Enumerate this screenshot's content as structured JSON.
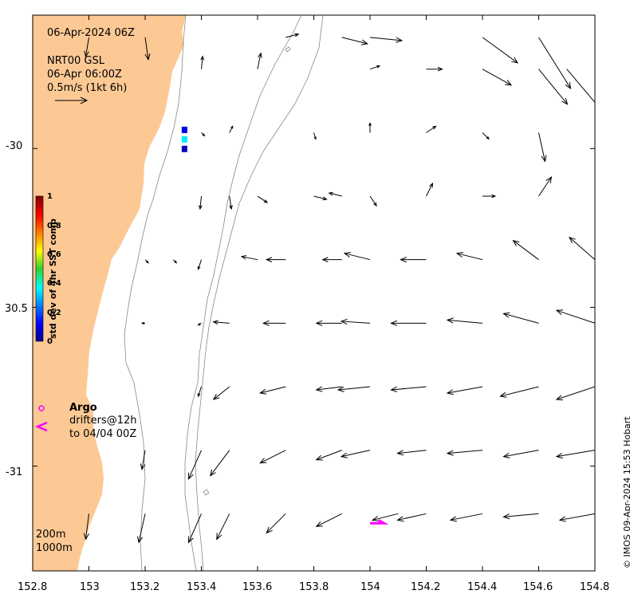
{
  "header": {
    "date": "06-Apr-2024 06Z",
    "product": "NRT00 GSL",
    "product_time": "06-Apr 06:00Z",
    "scale_label": "0.5m/s (1kt 6h)"
  },
  "axes": {
    "x_ticks": [
      "152.8",
      "153",
      "153.2",
      "153.4",
      "153.6",
      "153.8",
      "154",
      "154.2",
      "154.4",
      "154.6",
      "154.8"
    ],
    "y_ticks": [
      "-30",
      "30.5",
      "-31"
    ]
  },
  "colorbar": {
    "title": "std dev of 4hr SST comp",
    "ticks": [
      "1",
      "0.8",
      "0.6",
      "0.4",
      "0.2",
      "0"
    ]
  },
  "legend": {
    "argo_label": "Argo",
    "drifters_line1": "drifters@12h",
    "drifters_line2": "to 04/04 00Z",
    "isobath_200": "200m",
    "isobath_1000": "1000m"
  },
  "credit": "© IMOS 09-Apr-2024 15:53 Hobart",
  "colors": {
    "land": "#fcc995",
    "argo": "#ff00ff",
    "drifter": "#ff00ff",
    "isobath": "#888888",
    "arrows": "#000000"
  },
  "map_extent": {
    "lon": [
      152.8,
      154.8
    ],
    "lat": [
      -31.33,
      -29.58
    ]
  },
  "current_field": {
    "units": "m/s",
    "vectors": [
      [
        153.0,
        -29.65,
        -0.05,
        -0.3
      ],
      [
        153.2,
        -29.65,
        0.05,
        -0.35
      ],
      [
        153.7,
        -29.65,
        0.2,
        0.05
      ],
      [
        153.9,
        -29.65,
        0.4,
        -0.1
      ],
      [
        154.0,
        -29.65,
        0.5,
        -0.05
      ],
      [
        154.4,
        -29.65,
        0.55,
        -0.4
      ],
      [
        154.6,
        -29.65,
        0.5,
        -0.8
      ],
      [
        153.4,
        -29.75,
        0.02,
        0.2
      ],
      [
        153.6,
        -29.75,
        0.05,
        0.25
      ],
      [
        154.0,
        -29.75,
        0.15,
        0.05
      ],
      [
        154.2,
        -29.75,
        0.25,
        0.0
      ],
      [
        154.4,
        -29.75,
        0.45,
        -0.25
      ],
      [
        154.6,
        -29.75,
        0.45,
        -0.55
      ],
      [
        154.7,
        -29.75,
        0.55,
        -0.65
      ],
      [
        153.4,
        -29.95,
        0.05,
        -0.05
      ],
      [
        153.5,
        -29.95,
        0.05,
        0.1
      ],
      [
        153.8,
        -29.95,
        0.03,
        -0.1
      ],
      [
        154.0,
        -29.95,
        0.0,
        0.15
      ],
      [
        154.2,
        -29.95,
        0.15,
        0.1
      ],
      [
        154.4,
        -29.95,
        0.1,
        -0.1
      ],
      [
        154.6,
        -29.95,
        0.1,
        -0.45
      ],
      [
        153.4,
        -30.15,
        -0.02,
        -0.2
      ],
      [
        153.5,
        -30.15,
        0.03,
        -0.2
      ],
      [
        153.6,
        -30.15,
        0.15,
        -0.1
      ],
      [
        153.8,
        -30.15,
        0.2,
        -0.05
      ],
      [
        153.9,
        -30.15,
        -0.2,
        0.05
      ],
      [
        154.0,
        -30.15,
        0.1,
        -0.15
      ],
      [
        154.2,
        -30.15,
        0.1,
        0.2
      ],
      [
        154.4,
        -30.15,
        0.2,
        0.0
      ],
      [
        154.6,
        -30.15,
        0.2,
        0.3
      ],
      [
        154.8,
        -30.15,
        0.1,
        0.55
      ],
      [
        153.2,
        -30.35,
        0.05,
        -0.05
      ],
      [
        153.3,
        -30.35,
        0.05,
        -0.05
      ],
      [
        153.4,
        -30.35,
        -0.05,
        -0.15
      ],
      [
        153.6,
        -30.35,
        -0.25,
        0.05
      ],
      [
        153.7,
        -30.35,
        -0.3,
        0.0
      ],
      [
        153.9,
        -30.35,
        -0.3,
        0.0
      ],
      [
        154.0,
        -30.35,
        -0.4,
        0.1
      ],
      [
        154.2,
        -30.35,
        -0.4,
        0.0
      ],
      [
        154.4,
        -30.35,
        -0.4,
        0.1
      ],
      [
        154.6,
        -30.35,
        -0.4,
        0.3
      ],
      [
        154.8,
        -30.35,
        -0.4,
        0.35
      ],
      [
        153.2,
        -30.55,
        -0.05,
        0.0
      ],
      [
        153.4,
        -30.55,
        -0.05,
        -0.03
      ],
      [
        153.5,
        -30.55,
        -0.25,
        0.02
      ],
      [
        153.7,
        -30.55,
        -0.35,
        0.0
      ],
      [
        153.9,
        -30.55,
        -0.4,
        0.0
      ],
      [
        154.0,
        -30.55,
        -0.45,
        0.03
      ],
      [
        154.2,
        -30.55,
        -0.55,
        0.0
      ],
      [
        154.4,
        -30.55,
        -0.55,
        0.05
      ],
      [
        154.6,
        -30.55,
        -0.55,
        0.15
      ],
      [
        154.8,
        -30.55,
        -0.6,
        0.2
      ],
      [
        153.4,
        -30.75,
        -0.05,
        -0.15
      ],
      [
        153.5,
        -30.75,
        -0.25,
        -0.2
      ],
      [
        153.7,
        -30.75,
        -0.4,
        -0.1
      ],
      [
        153.9,
        -30.75,
        -0.4,
        -0.05
      ],
      [
        154.0,
        -30.75,
        -0.5,
        -0.05
      ],
      [
        154.2,
        -30.75,
        -0.55,
        -0.05
      ],
      [
        154.4,
        -30.75,
        -0.55,
        -0.1
      ],
      [
        154.6,
        -30.75,
        -0.6,
        -0.15
      ],
      [
        154.8,
        -30.75,
        -0.6,
        -0.2
      ],
      [
        153.2,
        -30.95,
        -0.05,
        -0.3
      ],
      [
        153.4,
        -30.95,
        -0.2,
        -0.45
      ],
      [
        153.5,
        -30.95,
        -0.3,
        -0.4
      ],
      [
        153.7,
        -30.95,
        -0.4,
        -0.2
      ],
      [
        153.9,
        -30.95,
        -0.4,
        -0.15
      ],
      [
        154.0,
        -30.95,
        -0.45,
        -0.1
      ],
      [
        154.2,
        -30.95,
        -0.45,
        -0.05
      ],
      [
        154.4,
        -30.95,
        -0.55,
        -0.05
      ],
      [
        154.6,
        -30.95,
        -0.55,
        -0.1
      ],
      [
        154.8,
        -30.95,
        -0.6,
        -0.1
      ],
      [
        153.0,
        -31.15,
        -0.05,
        -0.4
      ],
      [
        153.2,
        -31.15,
        -0.1,
        -0.45
      ],
      [
        153.4,
        -31.15,
        -0.2,
        -0.45
      ],
      [
        153.5,
        -31.15,
        -0.2,
        -0.4
      ],
      [
        153.7,
        -31.15,
        -0.3,
        -0.3
      ],
      [
        153.9,
        -31.15,
        -0.4,
        -0.2
      ],
      [
        154.1,
        -31.15,
        -0.4,
        -0.1
      ],
      [
        154.2,
        -31.15,
        -0.45,
        -0.1
      ],
      [
        154.4,
        -31.15,
        -0.5,
        -0.1
      ],
      [
        154.6,
        -31.15,
        -0.55,
        -0.05
      ],
      [
        154.8,
        -31.15,
        -0.55,
        -0.1
      ]
    ]
  },
  "sst_pixels": [
    {
      "lon": 153.34,
      "lat": -29.94,
      "value": 0.1
    },
    {
      "lon": 153.34,
      "lat": -29.97,
      "value": 0.35
    },
    {
      "lon": 153.34,
      "lat": -30.0,
      "value": 0.05
    }
  ],
  "drifter_track": [
    [
      154.0,
      -31.18
    ],
    [
      154.05,
      -31.18
    ],
    [
      154.03,
      -31.17
    ]
  ]
}
